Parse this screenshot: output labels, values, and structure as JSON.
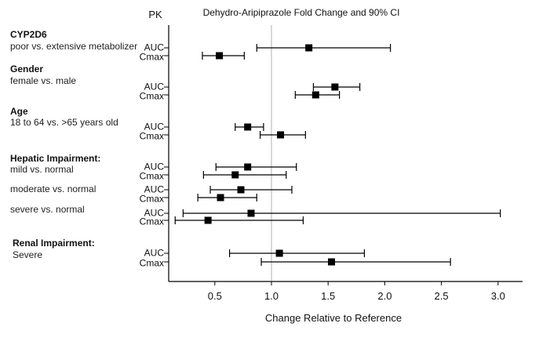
{
  "chart_data": {
    "type": "forest",
    "title": "Dehydro-Aripiprazole Fold Change and 90% CI",
    "pk_header": "PK",
    "xlabel": "Change Relative to Reference",
    "xlim": [
      0.09,
      3.22
    ],
    "x_ticks": [
      0.5,
      1.0,
      1.5,
      2.0,
      2.5,
      3.0
    ],
    "x_tick_labels": [
      "0.5",
      "1.0",
      "1.5",
      "2.0",
      "2.5",
      "3.0"
    ],
    "reference_line": 1.0,
    "groups": [
      {
        "title": "CYP2D6",
        "subtitle": "poor vs. extensive metabolizer"
      },
      {
        "title": "Gender",
        "subtitle": "female vs. male"
      },
      {
        "title": "Age",
        "subtitle": "18 to 64 vs. >65 years old"
      },
      {
        "title": "Hepatic Impairment:",
        "subtitle": "mild vs. normal"
      },
      {
        "title": "",
        "subtitle": "moderate vs. normal"
      },
      {
        "title": "",
        "subtitle": "severe vs. normal"
      },
      {
        "title": "Renal Impairment:",
        "subtitle": "Severe"
      }
    ],
    "rows": [
      {
        "group": 0,
        "pk": "AUC",
        "estimate": 1.33,
        "lower": 0.87,
        "upper": 2.05
      },
      {
        "group": 0,
        "pk": "Cmax",
        "estimate": 0.54,
        "lower": 0.39,
        "upper": 0.76
      },
      {
        "group": 1,
        "pk": "AUC",
        "estimate": 1.56,
        "lower": 1.37,
        "upper": 1.78
      },
      {
        "group": 1,
        "pk": "Cmax",
        "estimate": 1.39,
        "lower": 1.21,
        "upper": 1.6
      },
      {
        "group": 2,
        "pk": "AUC",
        "estimate": 0.79,
        "lower": 0.68,
        "upper": 0.93
      },
      {
        "group": 2,
        "pk": "Cmax",
        "estimate": 1.08,
        "lower": 0.9,
        "upper": 1.3
      },
      {
        "group": 3,
        "pk": "AUC",
        "estimate": 0.79,
        "lower": 0.51,
        "upper": 1.22
      },
      {
        "group": 3,
        "pk": "Cmax",
        "estimate": 0.68,
        "lower": 0.4,
        "upper": 1.13
      },
      {
        "group": 4,
        "pk": "AUC",
        "estimate": 0.73,
        "lower": 0.46,
        "upper": 1.18
      },
      {
        "group": 4,
        "pk": "Cmax",
        "estimate": 0.55,
        "lower": 0.35,
        "upper": 0.87
      },
      {
        "group": 5,
        "pk": "AUC",
        "estimate": 0.82,
        "lower": 0.22,
        "upper": 3.02
      },
      {
        "group": 5,
        "pk": "Cmax",
        "estimate": 0.44,
        "lower": 0.15,
        "upper": 1.28
      },
      {
        "group": 6,
        "pk": "AUC",
        "estimate": 1.07,
        "lower": 0.63,
        "upper": 1.82
      },
      {
        "group": 6,
        "pk": "Cmax",
        "estimate": 1.53,
        "lower": 0.91,
        "upper": 2.58
      }
    ],
    "colors": {
      "marker": "#000000",
      "reference": "#b0b0b0",
      "axis": "#000000"
    }
  }
}
